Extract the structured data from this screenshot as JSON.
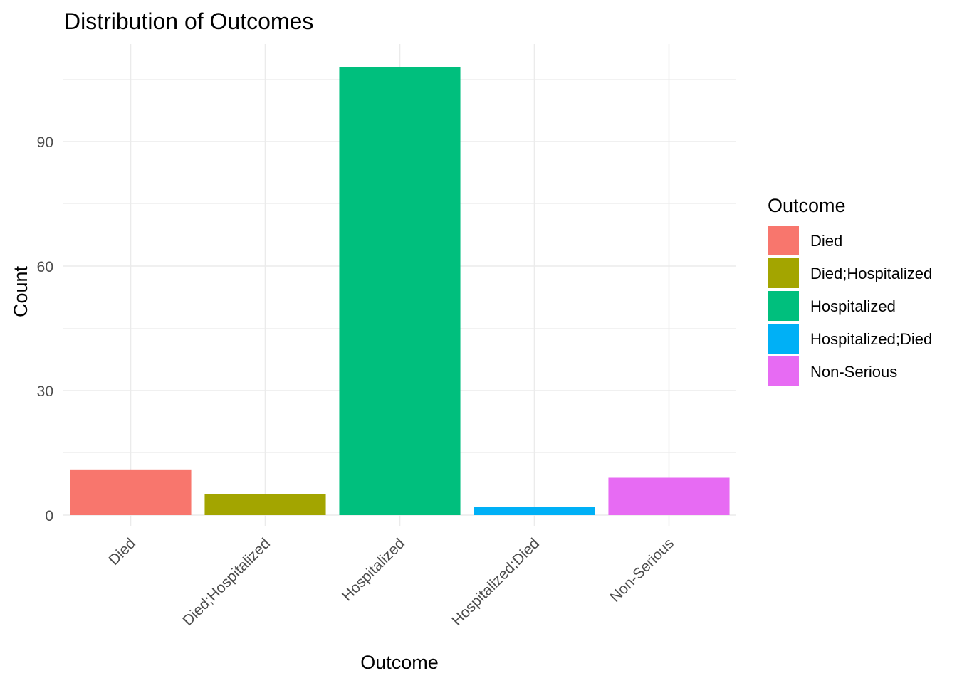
{
  "chart_data": {
    "type": "bar",
    "title": "Distribution of Outcomes",
    "xlabel": "Outcome",
    "ylabel": "Count",
    "categories": [
      "Died",
      "Died;Hospitalized",
      "Hospitalized",
      "Hospitalized;Died",
      "Non-Serious"
    ],
    "values": [
      11,
      5,
      108,
      2,
      9
    ],
    "colors": [
      "#F8766D",
      "#A3A500",
      "#00BF7D",
      "#00B0F6",
      "#E76BF3"
    ],
    "y_ticks": [
      0,
      30,
      60,
      90
    ],
    "ylim": [
      0,
      113.4
    ],
    "grid": true,
    "x_tick_rotation": 45,
    "legend": {
      "title": "Outcome",
      "placement": "right",
      "items": [
        "Died",
        "Died;Hospitalized",
        "Hospitalized",
        "Hospitalized;Died",
        "Non-Serious"
      ]
    }
  }
}
